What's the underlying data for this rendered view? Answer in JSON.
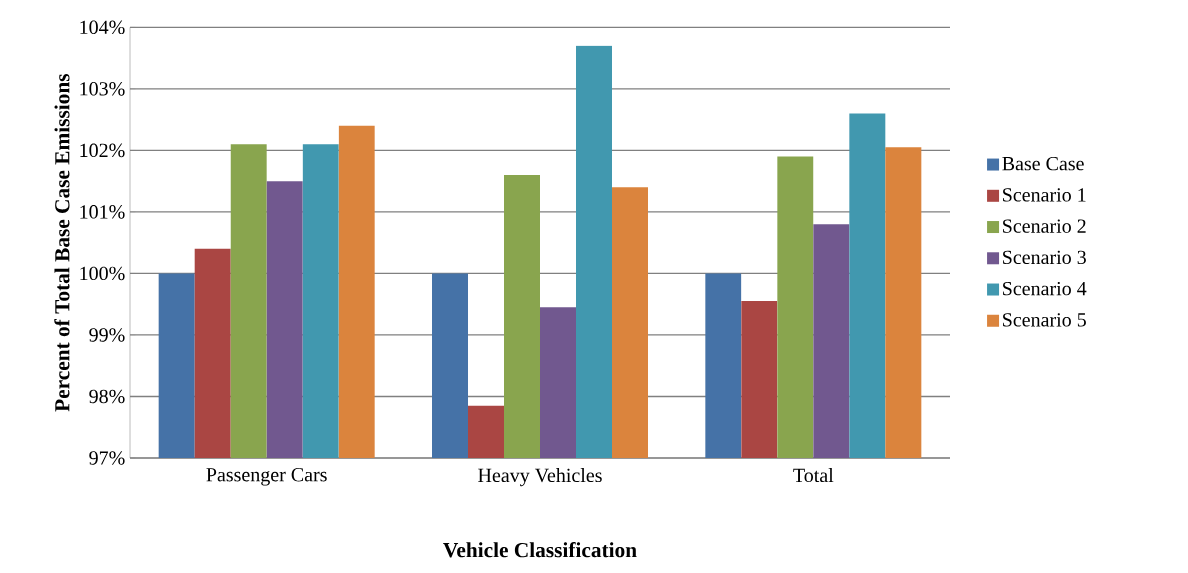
{
  "chart_data": {
    "type": "bar",
    "xlabel": "Vehicle Classification",
    "ylabel": "Percent of Total Base Case Emissions",
    "categories": [
      "Passenger Cars",
      "Heavy Vehicles",
      "Total"
    ],
    "series": [
      {
        "name": "Base Case",
        "color": "#4572a7",
        "values": [
          100,
          100,
          100
        ]
      },
      {
        "name": "Scenario 1",
        "color": "#aa4643",
        "values": [
          100.4,
          97.85,
          99.55
        ]
      },
      {
        "name": "Scenario 2",
        "color": "#89a54e",
        "values": [
          102.1,
          101.6,
          101.9
        ]
      },
      {
        "name": "Scenario 3",
        "color": "#71588f",
        "values": [
          101.5,
          99.45,
          100.8
        ]
      },
      {
        "name": "Scenario 4",
        "color": "#4198af",
        "values": [
          102.1,
          103.7,
          102.6
        ]
      },
      {
        "name": "Scenario 5",
        "color": "#db843d",
        "values": [
          102.4,
          101.4,
          102.05
        ]
      }
    ],
    "ylim": [
      97,
      104
    ],
    "yticks": [
      {
        "value": 97,
        "label": "97%"
      },
      {
        "value": 98,
        "label": "98%"
      },
      {
        "value": 99,
        "label": "99%"
      },
      {
        "value": 100,
        "label": "100%"
      },
      {
        "value": 101,
        "label": "101%"
      },
      {
        "value": 102,
        "label": "102%"
      },
      {
        "value": 103,
        "label": "103%"
      },
      {
        "value": 104,
        "label": "104%"
      }
    ],
    "grid": "y",
    "legend": "right"
  }
}
